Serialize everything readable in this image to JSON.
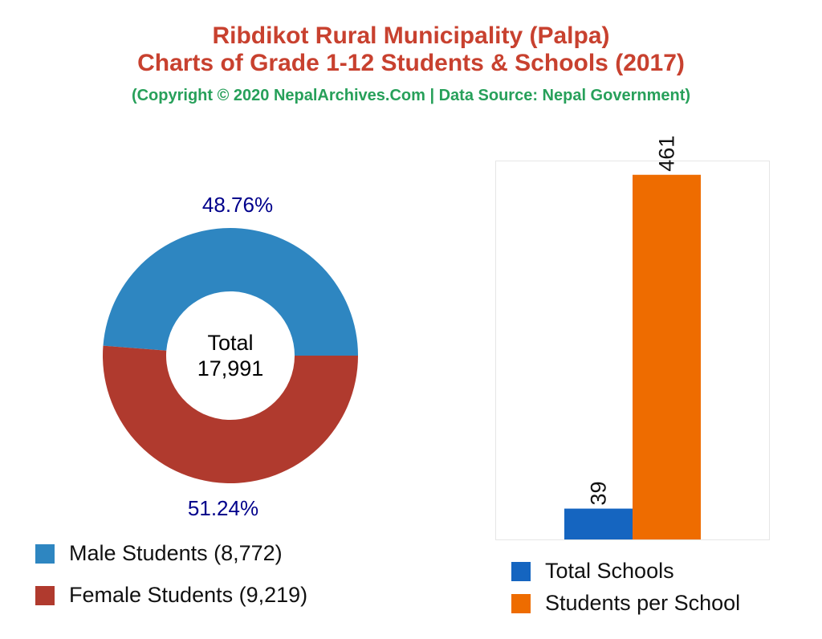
{
  "title": "Ribdikot Rural Municipality (Palpa)",
  "subtitle": "Charts of Grade 1-12 Students & Schools (2017)",
  "credit": "(Copyright © 2020 NepalArchives.Com | Data Source: Nepal Government)",
  "chart_data": [
    {
      "type": "pie",
      "variant": "donut",
      "center_label": "Total",
      "center_value": "17,991",
      "slices": [
        {
          "name": "Male Students (8,772)",
          "value": 8772,
          "percent_label": "48.76%",
          "color": "#2E86C1"
        },
        {
          "name": "Female Students (9,219)",
          "value": 9219,
          "percent_label": "51.24%",
          "color": "#B03A2E"
        }
      ],
      "label_color": "#00008B",
      "legend": "bottom-left"
    },
    {
      "type": "bar",
      "categories": [
        "Total Schools",
        "Students per School"
      ],
      "values": [
        39,
        461
      ],
      "data_labels": [
        "39",
        "461"
      ],
      "colors": [
        "#1565C0",
        "#EE6C00"
      ],
      "ylim": [
        0,
        479
      ],
      "grid": false,
      "legend": "bottom"
    }
  ]
}
